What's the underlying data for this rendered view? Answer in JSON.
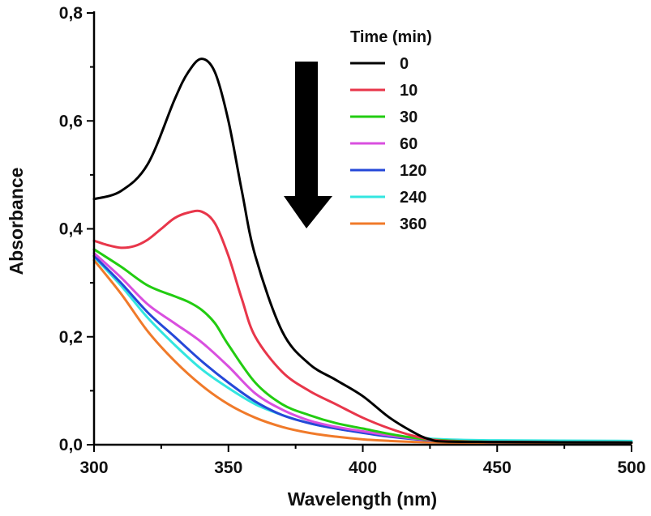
{
  "chart_data": {
    "type": "line",
    "xlabel": "Wavelength (nm)",
    "ylabel": "Absorbance",
    "xlim": [
      300,
      500
    ],
    "ylim": [
      0.0,
      0.8
    ],
    "xticks": [
      300,
      350,
      400,
      450,
      500
    ],
    "xtick_labels": [
      "300",
      "350",
      "400",
      "450",
      "500"
    ],
    "yticks": [
      0.0,
      0.2,
      0.4,
      0.6,
      0.8
    ],
    "ytick_labels": [
      "0,0",
      "0,2",
      "0,4",
      "0,6",
      "0,8"
    ],
    "grid": false,
    "legend_title": "Time (min)",
    "legend_position": "top-right",
    "annotation": "downward arrow indicating decreasing absorbance over time",
    "series": [
      {
        "name": "0",
        "color": "#000000",
        "x": [
          300,
          310,
          320,
          330,
          335,
          340,
          345,
          350,
          355,
          360,
          370,
          380,
          390,
          400,
          410,
          420,
          425,
          430,
          450,
          500
        ],
        "y": [
          0.455,
          0.47,
          0.52,
          0.64,
          0.69,
          0.715,
          0.69,
          0.6,
          0.47,
          0.35,
          0.21,
          0.15,
          0.12,
          0.09,
          0.05,
          0.02,
          0.01,
          0.006,
          0.005,
          0.004
        ]
      },
      {
        "name": "10",
        "color": "#e8364a",
        "x": [
          300,
          305,
          310,
          315,
          320,
          325,
          330,
          335,
          340,
          345,
          350,
          355,
          360,
          370,
          380,
          390,
          400,
          410,
          420,
          430,
          450,
          500
        ],
        "y": [
          0.378,
          0.37,
          0.365,
          0.368,
          0.38,
          0.4,
          0.42,
          0.43,
          0.432,
          0.41,
          0.35,
          0.27,
          0.2,
          0.135,
          0.1,
          0.075,
          0.05,
          0.03,
          0.015,
          0.007,
          0.005,
          0.004
        ]
      },
      {
        "name": "30",
        "color": "#22cc11",
        "x": [
          300,
          310,
          320,
          330,
          335,
          340,
          345,
          350,
          360,
          370,
          380,
          390,
          400,
          410,
          420,
          430,
          450,
          500
        ],
        "y": [
          0.362,
          0.33,
          0.295,
          0.275,
          0.265,
          0.25,
          0.225,
          0.185,
          0.115,
          0.075,
          0.055,
          0.04,
          0.03,
          0.02,
          0.012,
          0.008,
          0.005,
          0.004
        ]
      },
      {
        "name": "60",
        "color": "#d94fdf",
        "x": [
          300,
          310,
          320,
          330,
          340,
          350,
          360,
          370,
          380,
          390,
          400,
          410,
          420,
          430,
          450,
          500
        ],
        "y": [
          0.355,
          0.31,
          0.26,
          0.225,
          0.19,
          0.145,
          0.095,
          0.065,
          0.045,
          0.033,
          0.025,
          0.017,
          0.011,
          0.008,
          0.005,
          0.004
        ]
      },
      {
        "name": "120",
        "color": "#2548d8",
        "x": [
          300,
          310,
          320,
          330,
          340,
          350,
          360,
          370,
          380,
          390,
          400,
          410,
          420,
          430,
          450,
          500
        ],
        "y": [
          0.35,
          0.3,
          0.245,
          0.2,
          0.155,
          0.115,
          0.08,
          0.055,
          0.04,
          0.03,
          0.022,
          0.015,
          0.01,
          0.007,
          0.005,
          0.004
        ]
      },
      {
        "name": "240",
        "color": "#33e6e0",
        "x": [
          300,
          310,
          320,
          330,
          340,
          350,
          360,
          370,
          380,
          390,
          400,
          410,
          420,
          430,
          450,
          500
        ],
        "y": [
          0.348,
          0.295,
          0.235,
          0.185,
          0.14,
          0.105,
          0.075,
          0.055,
          0.04,
          0.03,
          0.023,
          0.017,
          0.013,
          0.01,
          0.008,
          0.007
        ]
      },
      {
        "name": "360",
        "color": "#f07a2a",
        "x": [
          300,
          310,
          320,
          330,
          340,
          350,
          360,
          370,
          380,
          390,
          400,
          410,
          420,
          430,
          450,
          500
        ],
        "y": [
          0.342,
          0.28,
          0.21,
          0.155,
          0.11,
          0.075,
          0.05,
          0.033,
          0.022,
          0.015,
          0.01,
          0.007,
          0.005,
          0.004,
          0.003,
          0.003
        ]
      }
    ]
  }
}
